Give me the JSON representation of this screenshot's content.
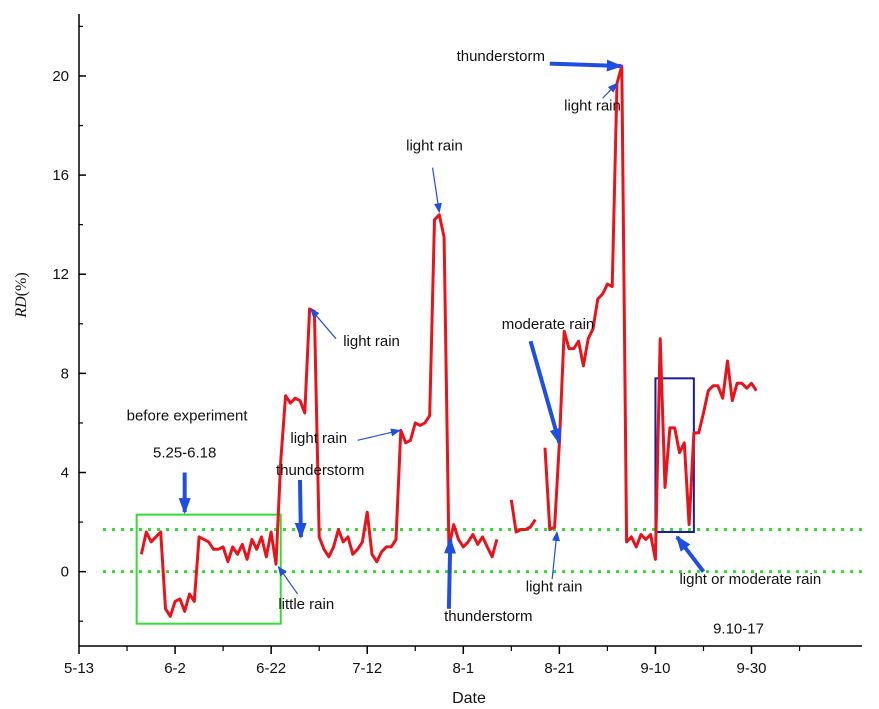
{
  "chart_data": {
    "type": "line",
    "title": "",
    "xlabel": "Date",
    "ylabel_italic": "RD",
    "ylabel_unit": "(%)",
    "x_ticks": [
      {
        "label": "5-13",
        "day": 0
      },
      {
        "label": "6-2",
        "day": 20
      },
      {
        "label": "6-22",
        "day": 40
      },
      {
        "label": "7-12",
        "day": 60
      },
      {
        "label": "8-1",
        "day": 80
      },
      {
        "label": "8-21",
        "day": 100
      },
      {
        "label": "9-10",
        "day": 120
      },
      {
        "label": "9-30",
        "day": 140
      }
    ],
    "xlim": [
      0,
      163
    ],
    "y_ticks": [
      0,
      4,
      8,
      12,
      16,
      20
    ],
    "ylim": [
      -3,
      22.5
    ],
    "reference_lines": [
      0,
      1.7
    ],
    "reference_color": "#33dd33",
    "series_color": "#e8141c",
    "series": [
      {
        "points": [
          [
            13,
            0.7
          ],
          [
            14,
            1.6
          ],
          [
            15,
            1.2
          ],
          [
            16,
            1.4
          ],
          [
            17,
            1.6
          ],
          [
            18,
            -1.5
          ],
          [
            19,
            -1.8
          ],
          [
            20,
            -1.2
          ],
          [
            21,
            -1.1
          ],
          [
            22,
            -1.6
          ],
          [
            23,
            -0.9
          ],
          [
            24,
            -1.2
          ],
          [
            25,
            1.4
          ],
          [
            26,
            1.3
          ],
          [
            27,
            1.2
          ],
          [
            28,
            0.9
          ],
          [
            29,
            0.9
          ],
          [
            30,
            1.0
          ],
          [
            31,
            0.4
          ],
          [
            32,
            1.0
          ],
          [
            33,
            0.7
          ],
          [
            34,
            1.1
          ],
          [
            35,
            0.5
          ],
          [
            36,
            1.3
          ],
          [
            37,
            0.9
          ],
          [
            38,
            1.4
          ],
          [
            39,
            0.6
          ],
          [
            40,
            1.6
          ],
          [
            41,
            0.3
          ],
          [
            42,
            4.5
          ],
          [
            43,
            7.1
          ],
          [
            44,
            6.8
          ],
          [
            45,
            7.0
          ],
          [
            46,
            6.9
          ],
          [
            47,
            6.4
          ],
          [
            48,
            10.6
          ],
          [
            49,
            10.5
          ],
          [
            50,
            1.4
          ],
          [
            51,
            0.9
          ],
          [
            52,
            0.6
          ],
          [
            53,
            1.0
          ],
          [
            54,
            1.7
          ],
          [
            55,
            1.2
          ],
          [
            56,
            1.4
          ],
          [
            57,
            0.7
          ],
          [
            58,
            0.9
          ],
          [
            59,
            1.2
          ],
          [
            60,
            2.4
          ],
          [
            61,
            0.7
          ],
          [
            62,
            0.4
          ],
          [
            63,
            0.8
          ],
          [
            64,
            1.0
          ],
          [
            65,
            1.0
          ],
          [
            66,
            1.3
          ],
          [
            67,
            5.7
          ],
          [
            68,
            5.2
          ],
          [
            69,
            5.3
          ],
          [
            70,
            6.0
          ],
          [
            71,
            5.9
          ],
          [
            72,
            6.0
          ],
          [
            73,
            6.3
          ],
          [
            74,
            14.2
          ],
          [
            75,
            14.4
          ],
          [
            76,
            13.5
          ],
          [
            77,
            1.0
          ],
          [
            78,
            1.9
          ],
          [
            79,
            1.3
          ],
          [
            80,
            1.0
          ],
          [
            81,
            1.2
          ],
          [
            82,
            1.5
          ],
          [
            83,
            1.1
          ],
          [
            84,
            1.4
          ],
          [
            85,
            1.0
          ],
          [
            86,
            0.6
          ],
          [
            87,
            1.3
          ]
        ]
      },
      {
        "points": [
          [
            90,
            2.9
          ],
          [
            91,
            1.6
          ],
          [
            92,
            1.7
          ],
          [
            93,
            1.7
          ],
          [
            94,
            1.8
          ],
          [
            95,
            2.1
          ]
        ]
      },
      {
        "points": [
          [
            97,
            5.0
          ],
          [
            98,
            1.7
          ],
          [
            99,
            1.8
          ],
          [
            100,
            5.2
          ],
          [
            101,
            9.7
          ],
          [
            102,
            9.0
          ],
          [
            103,
            9.0
          ],
          [
            104,
            9.3
          ],
          [
            105,
            8.3
          ],
          [
            106,
            9.4
          ],
          [
            107,
            9.8
          ],
          [
            108,
            11.0
          ],
          [
            109,
            11.2
          ],
          [
            110,
            11.6
          ],
          [
            111,
            11.5
          ],
          [
            112,
            19.7
          ],
          [
            113,
            20.4
          ],
          [
            114,
            1.2
          ],
          [
            115,
            1.4
          ],
          [
            116,
            1.0
          ],
          [
            117,
            1.5
          ],
          [
            118,
            1.3
          ],
          [
            119,
            1.5
          ],
          [
            120,
            0.5
          ],
          [
            121,
            9.4
          ],
          [
            122,
            3.4
          ],
          [
            123,
            5.8
          ],
          [
            124,
            5.8
          ],
          [
            125,
            4.8
          ],
          [
            126,
            5.2
          ],
          [
            127,
            1.9
          ],
          [
            128,
            5.6
          ],
          [
            129,
            5.6
          ],
          [
            130,
            6.4
          ],
          [
            131,
            7.3
          ],
          [
            132,
            7.5
          ],
          [
            133,
            7.5
          ],
          [
            134,
            7.0
          ],
          [
            135,
            8.5
          ],
          [
            136,
            6.9
          ],
          [
            137,
            7.6
          ],
          [
            138,
            7.6
          ],
          [
            139,
            7.4
          ],
          [
            140,
            7.6
          ],
          [
            141,
            7.3
          ]
        ]
      }
    ],
    "annotation_boxes": [
      {
        "name": "before-experiment-box",
        "x0": 12,
        "x1": 42,
        "y0": -2.1,
        "y1": 2.3,
        "color": "#33dd33"
      },
      {
        "name": "sep-box",
        "x0": 120,
        "x1": 128,
        "y0": 1.6,
        "y1": 7.8,
        "color": "#1c1c9a"
      }
    ],
    "annotations": [
      {
        "name": "before-experiment",
        "text": "before experiment",
        "day": 22.5,
        "y": 6.1,
        "anchor": "middle"
      },
      {
        "name": "before-experiment-dates",
        "text": "5.25-6.18",
        "day": 22,
        "y": 4.6,
        "anchor": "middle"
      },
      {
        "name": "thunderstorm-1",
        "text": "thunderstorm",
        "day": 41,
        "y": 3.9,
        "anchor": "start"
      },
      {
        "name": "little-rain",
        "text": "little rain",
        "day": 41.5,
        "y": -1.5,
        "anchor": "start"
      },
      {
        "name": "light-rain-1",
        "text": "light rain",
        "day": 55,
        "y": 9.1,
        "anchor": "start"
      },
      {
        "name": "light-rain-2",
        "text": "light rain",
        "day": 44,
        "y": 5.2,
        "anchor": "start"
      },
      {
        "name": "light-rain-3",
        "text": "light rain",
        "day": 74,
        "y": 17.0,
        "anchor": "middle"
      },
      {
        "name": "thunderstorm-2",
        "text": "thunderstorm",
        "day": 76,
        "y": -2.0,
        "anchor": "start"
      },
      {
        "name": "thunderstorm-3",
        "text": "thunderstorm",
        "day": 97,
        "y": 20.6,
        "anchor": "end"
      },
      {
        "name": "light-rain-4",
        "text": "light rain",
        "day": 101,
        "y": 18.6,
        "anchor": "start"
      },
      {
        "name": "moderate-rain",
        "text": "moderate rain",
        "day": 88,
        "y": 9.8,
        "anchor": "start"
      },
      {
        "name": "light-rain-5",
        "text": "light rain",
        "day": 93,
        "y": -0.8,
        "anchor": "start"
      },
      {
        "name": "light-or-moderate-rain",
        "text": "light or moderate rain",
        "day": 125,
        "y": -0.5,
        "anchor": "start"
      },
      {
        "name": "sep-dates",
        "text": "9.10-17",
        "day": 132,
        "y": -2.5,
        "anchor": "start"
      }
    ],
    "arrows": [
      {
        "name": "before-arrow",
        "from": [
          22,
          4.0
        ],
        "to": [
          22,
          2.4
        ],
        "thick": true
      },
      {
        "name": "thunderstorm-1-arrow",
        "from": [
          46,
          3.7
        ],
        "to": [
          46.2,
          1.4
        ],
        "thick": true
      },
      {
        "name": "little-rain-arrow",
        "from": [
          45.5,
          -0.9
        ],
        "to": [
          41.5,
          0.2
        ],
        "thick": false
      },
      {
        "name": "light-rain-1-arrow",
        "from": [
          53.5,
          9.4
        ],
        "to": [
          48.2,
          10.6
        ],
        "thick": false
      },
      {
        "name": "light-rain-2-arrow",
        "from": [
          58,
          5.3
        ],
        "to": [
          66.8,
          5.7
        ],
        "thick": false
      },
      {
        "name": "light-rain-3-arrow",
        "from": [
          73.6,
          16.3
        ],
        "to": [
          75,
          14.5
        ],
        "thick": false
      },
      {
        "name": "thunderstorm-2-arrow",
        "from": [
          77,
          -1.5
        ],
        "to": [
          77.3,
          1.3
        ],
        "thick": true
      },
      {
        "name": "thunderstorm-3-arrow",
        "from": [
          98,
          20.5
        ],
        "to": [
          112.8,
          20.4
        ],
        "thick": true
      },
      {
        "name": "light-rain-4-arrow",
        "from": [
          109,
          19.1
        ],
        "to": [
          112,
          19.7
        ],
        "thick": false
      },
      {
        "name": "moderate-rain-arrow",
        "from": [
          94,
          9.3
        ],
        "to": [
          100,
          5.2
        ],
        "thick": true
      },
      {
        "name": "light-rain-5-arrow",
        "from": [
          98.5,
          -0.3
        ],
        "to": [
          99.5,
          1.6
        ],
        "thick": false
      },
      {
        "name": "light-or-moderate-arrow",
        "from": [
          130,
          0.0
        ],
        "to": [
          124.5,
          1.4
        ],
        "thick": true
      }
    ]
  }
}
